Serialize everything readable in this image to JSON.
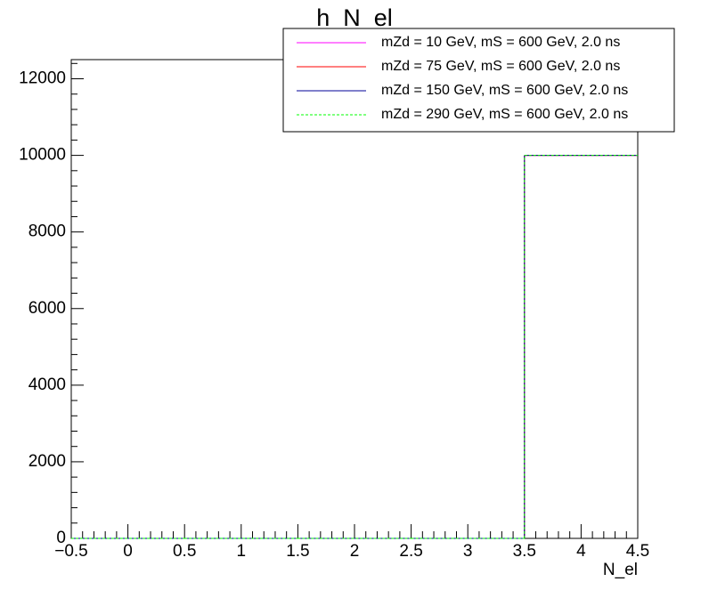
{
  "chart_data": {
    "type": "histogram",
    "title": "h_N_el",
    "x_label": "N_el",
    "bins": [
      -0.5,
      0.5,
      1.5,
      2.5,
      3.5,
      4.5
    ],
    "series": [
      {
        "name": "mZd = 10 GeV, mS = 600 GeV, 2.0 ns",
        "color": "#ff00ff",
        "dash": false,
        "values": [
          0,
          0,
          0,
          0,
          10000
        ]
      },
      {
        "name": "mZd = 75 GeV, mS = 600 GeV, 2.0 ns",
        "color": "#ff0000",
        "dash": false,
        "values": [
          0,
          0,
          0,
          0,
          10000
        ]
      },
      {
        "name": "mZd = 150 GeV, mS = 600 GeV, 2.0 ns",
        "color": "#000099",
        "dash": false,
        "values": [
          0,
          0,
          0,
          0,
          10000
        ]
      },
      {
        "name": "mZd = 290 GeV, mS = 600 GeV, 2.0 ns",
        "color": "#00ff00",
        "dash": true,
        "values": [
          0,
          0,
          0,
          0,
          10000
        ]
      }
    ],
    "xlim": [
      -0.5,
      4.5
    ],
    "xticks": [
      {
        "value": -0.5,
        "label": "−0.5"
      },
      0,
      0.5,
      1,
      1.5,
      2,
      2.5,
      3,
      3.5,
      4,
      4.5
    ],
    "ylim": [
      0,
      12500
    ],
    "yticks": [
      0,
      2000,
      4000,
      6000,
      8000,
      10000,
      12000
    ],
    "legend": "top-right"
  }
}
